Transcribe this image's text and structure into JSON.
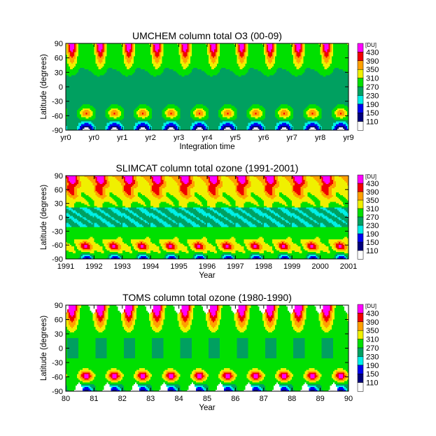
{
  "colors": {
    "levels": [
      "#ffffff",
      "#00007a",
      "#0000f0",
      "#00f0e8",
      "#00a060",
      "#00e000",
      "#f0f000",
      "#ffa000",
      "#f00000",
      "#ff00ff"
    ],
    "coastline": "#000000",
    "background": "#ffffff"
  },
  "chart_data": [
    {
      "type": "heatmap",
      "title": "UMCHEM column total O3 (00-09)",
      "xlabel": "Integration time",
      "ylabel": "Latitude (degrees)",
      "x_tick_labels": [
        "yr0",
        "yr0",
        "yr1",
        "yr2",
        "yr3",
        "yr4",
        "yr5",
        "yr6",
        "yr7",
        "yr8",
        "yr9"
      ],
      "y_tick_labels": [
        "90",
        "60",
        "30",
        "0",
        "-30",
        "-60",
        "-90"
      ],
      "y_ticks": [
        90,
        60,
        30,
        0,
        -30,
        -60,
        -90
      ],
      "ylim": [
        -90,
        90
      ],
      "legend_unit": "[DU]",
      "levels": [
        110,
        150,
        190,
        230,
        270,
        310,
        350,
        390,
        430
      ],
      "level_labels": [
        "430",
        "390",
        "350",
        "310",
        "270",
        "230",
        "190",
        "150",
        "110"
      ],
      "n_cycles": 10,
      "pattern": "umchem"
    },
    {
      "type": "heatmap",
      "title": "SLIMCAT column total ozone (1991-2001)",
      "xlabel": "Year",
      "ylabel": "Latitude (degrees)",
      "x_tick_labels": [
        "1991",
        "1992",
        "1993",
        "1994",
        "1995",
        "1996",
        "1997",
        "1998",
        "1999",
        "2000",
        "2001"
      ],
      "y_tick_labels": [
        "90",
        "60",
        "30",
        "0",
        "-30",
        "-60",
        "-90"
      ],
      "y_ticks": [
        90,
        60,
        30,
        0,
        -30,
        -60,
        -90
      ],
      "ylim": [
        -90,
        90
      ],
      "legend_unit": "[DU]",
      "levels": [
        110,
        150,
        190,
        230,
        270,
        310,
        350,
        390,
        430
      ],
      "level_labels": [
        "430",
        "390",
        "350",
        "310",
        "270",
        "230",
        "190",
        "150",
        "110"
      ],
      "n_cycles": 10,
      "pattern": "slimcat"
    },
    {
      "type": "heatmap",
      "title": "TOMS column total ozone (1980-1990)",
      "xlabel": "Year",
      "ylabel": "Latitude (degrees)",
      "x_tick_labels": [
        "80",
        "81",
        "82",
        "83",
        "84",
        "85",
        "86",
        "87",
        "88",
        "89",
        "90"
      ],
      "y_tick_labels": [
        "90",
        "60",
        "30",
        "0",
        "-30",
        "-60",
        "-90"
      ],
      "y_ticks": [
        90,
        60,
        30,
        0,
        -30,
        -60,
        -90
      ],
      "ylim": [
        -90,
        90
      ],
      "legend_unit": "[DU]",
      "levels": [
        110,
        150,
        190,
        230,
        270,
        310,
        350,
        390,
        430
      ],
      "level_labels": [
        "430",
        "390",
        "350",
        "310",
        "270",
        "230",
        "190",
        "150",
        "110"
      ],
      "n_cycles": 10,
      "pattern": "toms"
    }
  ]
}
